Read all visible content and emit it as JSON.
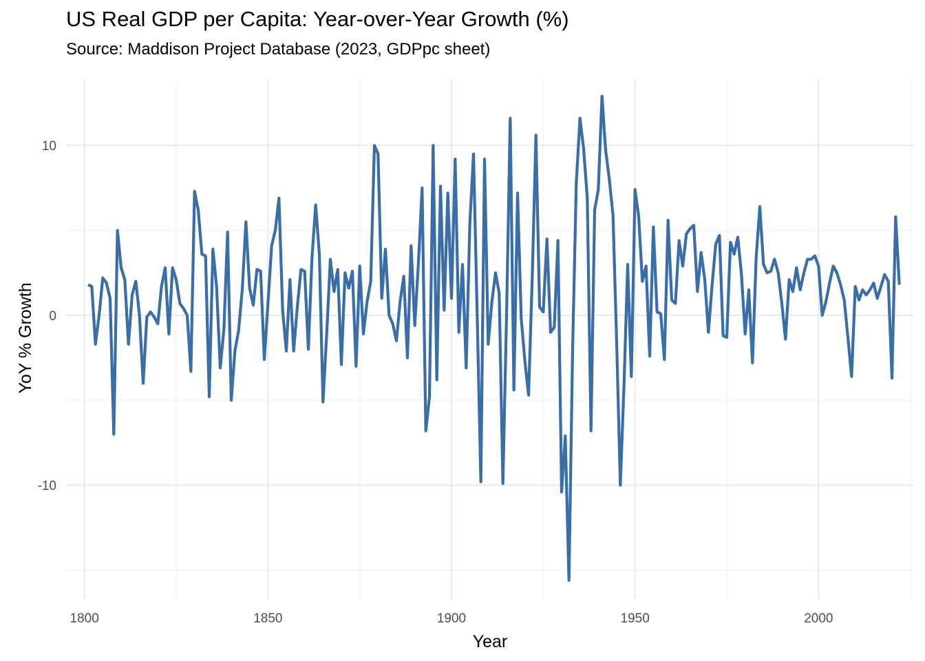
{
  "chart_data": {
    "type": "line",
    "title": "US Real GDP per Capita: Year-over-Year Growth (%)",
    "subtitle": "Source: Maddison Project Database (2023, GDPpc sheet)",
    "xlabel": "Year",
    "ylabel": "YoY % Growth",
    "xlim": [
      1795,
      2026
    ],
    "ylim": [
      -16.7,
      13.9
    ],
    "x_ticks": [
      1800,
      1850,
      1900,
      1950,
      2000
    ],
    "y_ticks": [
      -10,
      0,
      10
    ],
    "grid": true,
    "legend": "none",
    "line_color": "#3a6ea8",
    "series": [
      {
        "x": [
          1801,
          1802,
          1803,
          1804,
          1805,
          1806,
          1807,
          1808,
          1809,
          1810,
          1811,
          1812,
          1813,
          1814,
          1815,
          1816,
          1817,
          1818,
          1819,
          1820,
          1821,
          1822,
          1823,
          1824,
          1825,
          1826,
          1827,
          1828,
          1829,
          1830,
          1831,
          1832,
          1833,
          1834,
          1835,
          1836,
          1837,
          1838,
          1839,
          1840,
          1841,
          1842,
          1843,
          1844,
          1845,
          1846,
          1847,
          1848,
          1849,
          1850,
          1851,
          1852,
          1853,
          1854,
          1855,
          1856,
          1857,
          1858,
          1859,
          1860,
          1861,
          1862,
          1863,
          1864,
          1865,
          1866,
          1867,
          1868,
          1869,
          1870,
          1871,
          1872,
          1873,
          1874,
          1875,
          1876,
          1877,
          1878,
          1879,
          1880,
          1881,
          1882,
          1883,
          1884,
          1885,
          1886,
          1887,
          1888,
          1889,
          1890,
          1891,
          1892,
          1893,
          1894,
          1895,
          1896,
          1897,
          1898,
          1899,
          1900,
          1901,
          1902,
          1903,
          1904,
          1905,
          1906,
          1907,
          1908,
          1909,
          1910,
          1911,
          1912,
          1913,
          1914,
          1915,
          1916,
          1917,
          1918,
          1919,
          1920,
          1921,
          1922,
          1923,
          1924,
          1925,
          1926,
          1927,
          1928,
          1929,
          1930,
          1931,
          1932,
          1933,
          1934,
          1935,
          1936,
          1937,
          1938,
          1939,
          1940,
          1941,
          1942,
          1943,
          1944,
          1945,
          1946,
          1947,
          1948,
          1949,
          1950,
          1951,
          1952,
          1953,
          1954,
          1955,
          1956,
          1957,
          1958,
          1959,
          1960,
          1961,
          1962,
          1963,
          1964,
          1965,
          1966,
          1967,
          1968,
          1969,
          1970,
          1971,
          1972,
          1973,
          1974,
          1975,
          1976,
          1977,
          1978,
          1979,
          1980,
          1981,
          1982,
          1983,
          1984,
          1985,
          1986,
          1987,
          1988,
          1989,
          1990,
          1991,
          1992,
          1993,
          1994,
          1995,
          1996,
          1997,
          1998,
          1999,
          2000,
          2001,
          2002,
          2003,
          2004,
          2005,
          2006,
          2007,
          2008,
          2009,
          2010,
          2011,
          2012,
          2013,
          2014,
          2015,
          2016,
          2017,
          2018,
          2019,
          2020,
          2021,
          2022
        ],
        "values": [
          1.8,
          1.7,
          -1.7,
          0.0,
          2.2,
          1.9,
          1.0,
          -7.0,
          5.0,
          2.8,
          2.1,
          -1.7,
          1.2,
          2.0,
          0.0,
          -4.0,
          -0.1,
          0.2,
          -0.1,
          -0.5,
          1.7,
          2.8,
          -1.1,
          2.8,
          2.1,
          0.7,
          0.4,
          0.0,
          -3.3,
          7.3,
          6.2,
          3.6,
          3.5,
          -4.8,
          3.9,
          1.7,
          -3.1,
          -0.8,
          4.9,
          -5.0,
          -2.1,
          -0.9,
          1.5,
          5.5,
          1.6,
          0.6,
          2.7,
          2.6,
          -2.6,
          0.7,
          4.1,
          5.0,
          6.9,
          0.3,
          -2.1,
          2.1,
          -2.1,
          0.5,
          2.7,
          2.6,
          -2.0,
          3.4,
          6.5,
          3.6,
          -5.1,
          -1.1,
          3.3,
          1.4,
          2.7,
          -2.9,
          2.5,
          1.6,
          2.6,
          -3.0,
          2.9,
          -1.1,
          0.8,
          2.0,
          10.0,
          9.5,
          1.0,
          3.9,
          0.0,
          -0.5,
          -1.5,
          0.8,
          2.3,
          -2.5,
          4.1,
          -0.6,
          3.1,
          7.5,
          -6.8,
          -4.8,
          10.0,
          -3.8,
          7.6,
          0.3,
          7.2,
          1.0,
          9.2,
          -1.0,
          3.0,
          -3.1,
          5.4,
          9.5,
          0.0,
          -9.8,
          9.2,
          -1.7,
          0.8,
          2.5,
          1.3,
          -9.9,
          0.0,
          11.6,
          -4.4,
          7.2,
          -0.2,
          -2.7,
          -4.7,
          2.2,
          10.6,
          0.5,
          0.2,
          4.5,
          -1.0,
          -0.7,
          4.4,
          -10.4,
          -7.1,
          -15.6,
          -2.0,
          7.8,
          11.6,
          9.8,
          6.9,
          -6.8,
          6.2,
          7.4,
          12.9,
          9.7,
          8.0,
          5.9,
          -1.6,
          -10.0,
          -4.1,
          3.0,
          -3.6,
          7.4,
          5.8,
          2.0,
          2.9,
          -2.4,
          5.2,
          0.2,
          0.1,
          -2.6,
          5.6,
          0.9,
          0.7,
          4.4,
          2.9,
          4.8,
          5.1,
          5.3,
          1.4,
          3.7,
          2.1,
          -1.0,
          1.8,
          4.2,
          4.7,
          -1.2,
          -1.3,
          4.3,
          3.6,
          4.6,
          2.4,
          -1.1,
          1.5,
          -2.8,
          3.4,
          6.4,
          3.0,
          2.5,
          2.6,
          3.3,
          2.5,
          0.7,
          -1.4,
          2.1,
          1.4,
          2.8,
          1.5,
          2.5,
          3.3,
          3.3,
          3.5,
          2.9,
          0.0,
          0.8,
          1.9,
          2.9,
          2.5,
          1.8,
          0.9,
          -1.3,
          -3.6,
          1.7,
          0.9,
          1.5,
          1.2,
          1.5,
          1.9,
          1.0,
          1.7,
          2.4,
          2.0,
          -3.7,
          5.8,
          1.8
        ]
      }
    ]
  }
}
